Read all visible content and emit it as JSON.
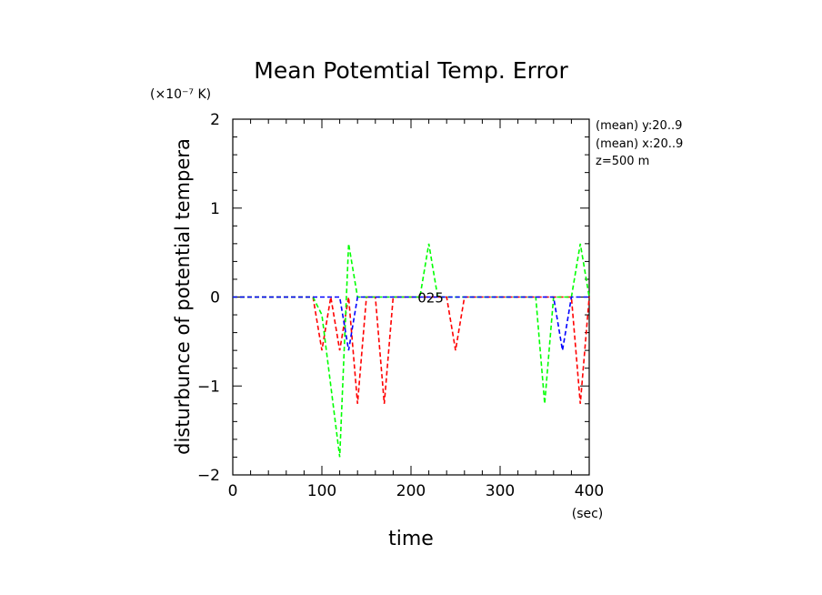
{
  "chart_data": {
    "type": "line",
    "title": "Mean Potemtial Temp. Error",
    "xlabel": "time",
    "ylabel": "disturbunce of potential tempera",
    "x_unit": "(sec)",
    "y_unit": "(×10⁻⁷ K)",
    "xlim": [
      0,
      400
    ],
    "ylim": [
      -2,
      2
    ],
    "x_ticks": [
      "0",
      "100",
      "200",
      "300",
      "400"
    ],
    "y_ticks": [
      "2",
      "1",
      "0",
      "−1",
      "−2"
    ],
    "x_tick_values": [
      0,
      100,
      200,
      300,
      400
    ],
    "y_tick_values": [
      2,
      1,
      0,
      -1,
      -2
    ],
    "grid": false,
    "annotations": [
      "(mean) y:20..9",
      "(mean) x:20..9",
      "z=500 m"
    ],
    "inline_label": "025",
    "inline_label_at": [
      222,
      0
    ],
    "series": [
      {
        "color": "#ff0000",
        "x": [
          0,
          90,
          100,
          110,
          120,
          130,
          140,
          150,
          160,
          170,
          180,
          240,
          250,
          260,
          380,
          390,
          400
        ],
        "y": [
          0,
          0,
          -0.6,
          0,
          -0.6,
          0,
          -1.2,
          0,
          0,
          -1.2,
          0,
          0,
          -0.6,
          0,
          0,
          -1.2,
          0
        ]
      },
      {
        "color": "#00ff00",
        "x": [
          0,
          90,
          100,
          120,
          130,
          140,
          210,
          220,
          230,
          340,
          350,
          360,
          380,
          390,
          400
        ],
        "y": [
          0,
          0,
          -0.2,
          -1.8,
          0.6,
          0,
          0,
          0.6,
          0,
          0,
          -1.2,
          0,
          0,
          0.6,
          0
        ]
      },
      {
        "color": "#0000ff",
        "x": [
          0,
          120,
          130,
          140,
          360,
          370,
          380,
          400
        ],
        "y": [
          0,
          0,
          -0.6,
          0,
          0,
          -0.6,
          0,
          0
        ]
      }
    ]
  }
}
